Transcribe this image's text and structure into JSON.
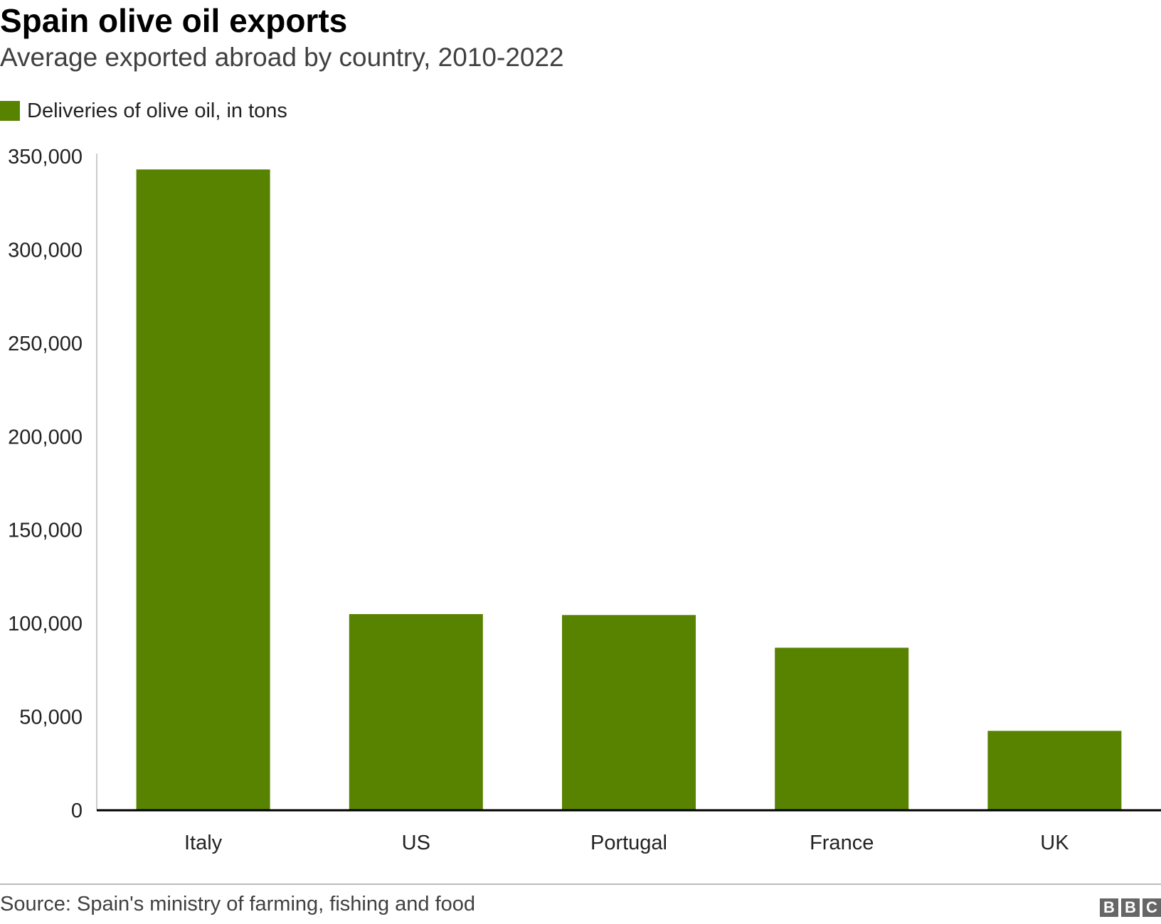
{
  "header": {
    "title": "Spain olive oil exports",
    "subtitle": "Average exported abroad by country, 2010-2022"
  },
  "legend": {
    "label": "Deliveries of olive oil, in tons"
  },
  "footer": {
    "source": "Source: Spain's ministry of farming, fishing and food",
    "logo_letters": [
      "B",
      "B",
      "C"
    ]
  },
  "colors": {
    "bar": "#588300",
    "axis": "#000000",
    "y_axis_line": "#cccccc",
    "logo": "#666666"
  },
  "chart_data": {
    "type": "bar",
    "title": "Spain olive oil exports",
    "subtitle": "Average exported abroad by country, 2010-2022",
    "categories": [
      "Italy",
      "US",
      "Portugal",
      "France",
      "UK"
    ],
    "series": [
      {
        "name": "Deliveries of olive oil, in tons",
        "values": [
          343000,
          105000,
          104500,
          87000,
          42500
        ]
      }
    ],
    "xlabel": "",
    "ylabel": "",
    "ylim": [
      0,
      350000
    ],
    "yticks": [
      0,
      50000,
      100000,
      150000,
      200000,
      250000,
      300000,
      350000
    ],
    "ytick_labels": [
      "0",
      "50,000",
      "100,000",
      "150,000",
      "200,000",
      "250,000",
      "300,000",
      "350,000"
    ],
    "grid": false,
    "legend_position": "top-left"
  }
}
